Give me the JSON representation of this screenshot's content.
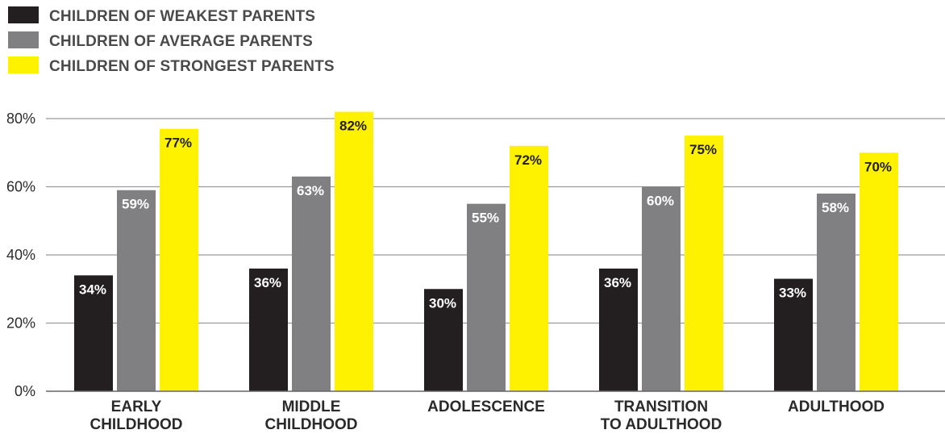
{
  "chart_data": {
    "type": "bar",
    "categories": [
      [
        "EARLY",
        "CHILDHOOD"
      ],
      [
        "MIDDLE",
        "CHILDHOOD"
      ],
      [
        "ADOLESCENCE"
      ],
      [
        "TRANSITION",
        "TO ADULTHOOD"
      ],
      [
        "ADULTHOOD"
      ]
    ],
    "series": [
      {
        "name": "CHILDREN OF WEAKEST PARENTS",
        "color": "#231f20",
        "label_color": "#ffffff",
        "values": [
          34,
          36,
          30,
          36,
          33
        ],
        "data_labels": [
          "34%",
          "36%",
          "30%",
          "36%",
          "33%"
        ]
      },
      {
        "name": "CHILDREN OF AVERAGE PARENTS",
        "color": "#808083",
        "label_color": "#ffffff",
        "values": [
          59,
          63,
          55,
          60,
          58
        ],
        "data_labels": [
          "59%",
          "63%",
          "55%",
          "60%",
          "58%"
        ]
      },
      {
        "name": "CHILDREN OF STRONGEST PARENTS",
        "color": "#fff200",
        "label_color": "#231f20",
        "values": [
          77,
          82,
          72,
          75,
          70
        ],
        "data_labels": [
          "77%",
          "82%",
          "72%",
          "75%",
          "70%"
        ]
      }
    ],
    "yticks": [
      0,
      20,
      40,
      60,
      80
    ],
    "ytick_labels": [
      "0%",
      "20%",
      "40%",
      "60%",
      "80%"
    ],
    "ylim": [
      0,
      80
    ],
    "grid": true,
    "legend_position": "top-left",
    "gridline_color": "#9a9a9a",
    "axis_color": "#666666"
  }
}
